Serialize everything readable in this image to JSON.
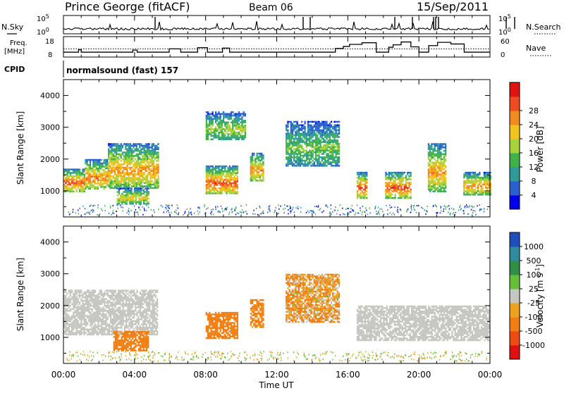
{
  "header": {
    "station": "Prince George (fitACF)",
    "beam": "Beam 06",
    "date": "15/Sep/2011"
  },
  "nsky_panel": {
    "left_label": "N.Sky",
    "right_label": "N.Search",
    "top_tick": "10^5",
    "bottom_tick": "10^0"
  },
  "freq_panel": {
    "left_label_line1": "Freq.",
    "left_label_line2": "[MHz]",
    "left_top_tick": "18",
    "left_bottom_tick": "8",
    "right_label": "Nave",
    "right_top_tick": "60",
    "right_bottom_tick": "0",
    "dotted_level": 12,
    "frequency_steps": [
      {
        "t": 0.0,
        "f": 10.4
      },
      {
        "t": 0.85,
        "f": 11.6
      },
      {
        "t": 1.0,
        "f": 10.4
      },
      {
        "t": 3.9,
        "f": 11.4
      },
      {
        "t": 4.15,
        "f": 10.4
      },
      {
        "t": 5.95,
        "f": 12.0
      },
      {
        "t": 6.6,
        "f": 10.4
      },
      {
        "t": 7.55,
        "f": 12.6
      },
      {
        "t": 8.1,
        "f": 10.4
      },
      {
        "t": 8.95,
        "f": 12.4
      },
      {
        "t": 9.35,
        "f": 10.4
      },
      {
        "t": 15.3,
        "f": 12.2
      },
      {
        "t": 15.75,
        "f": 13.2
      },
      {
        "t": 16.1,
        "f": 14.2
      },
      {
        "t": 16.8,
        "f": 15.0
      },
      {
        "t": 17.6,
        "f": 10.4
      },
      {
        "t": 18.3,
        "f": 12.8
      },
      {
        "t": 18.55,
        "f": 14.0
      },
      {
        "t": 19.0,
        "f": 15.4
      },
      {
        "t": 19.55,
        "f": 13.0
      },
      {
        "t": 20.0,
        "f": 10.4
      },
      {
        "t": 20.55,
        "f": 13.6
      },
      {
        "t": 21.05,
        "f": 15.2
      },
      {
        "t": 21.8,
        "f": 14.4
      },
      {
        "t": 22.55,
        "f": 10.4
      },
      {
        "t": 24.0,
        "f": 10.4
      }
    ]
  },
  "cpid": {
    "label": "CPID",
    "program": "normalsound (fast) 157"
  },
  "chart_data": [
    {
      "type": "heatmap",
      "panel": "power",
      "ylabel": "Slant Range [km]",
      "xlim_hours": [
        0,
        24
      ],
      "ylim": [
        180,
        4500
      ],
      "y_ticks": [
        "1000",
        "2000",
        "3000",
        "4000"
      ],
      "colorbar_label": "Power [dB]",
      "colorbar_ticks": [
        "4",
        "8",
        "12",
        "16",
        "20",
        "24",
        "28"
      ],
      "colorbar_colors": [
        "#0000ee",
        "#2a5fd0",
        "#2f9a9a",
        "#3fb24a",
        "#a8d23c",
        "#f4c21c",
        "#f28a1e",
        "#ee4b1e",
        "#e01212"
      ],
      "regions": [
        {
          "t0": 0.0,
          "t1": 1.2,
          "r0": 1000,
          "r1": 1700,
          "peak": 28
        },
        {
          "t0": 1.2,
          "t1": 2.5,
          "r0": 1050,
          "r1": 2000,
          "peak": 25
        },
        {
          "t0": 2.5,
          "t1": 5.3,
          "r0": 1100,
          "r1": 2500,
          "peak": 24
        },
        {
          "t0": 3.0,
          "t1": 4.8,
          "r0": 600,
          "r1": 1100,
          "peak": 20
        },
        {
          "t0": 8.0,
          "t1": 9.8,
          "r0": 900,
          "r1": 1800,
          "peak": 28
        },
        {
          "t0": 8.0,
          "t1": 10.2,
          "r0": 2600,
          "r1": 3500,
          "peak": 16
        },
        {
          "t0": 10.5,
          "t1": 11.2,
          "r0": 1300,
          "r1": 2200,
          "peak": 24
        },
        {
          "t0": 12.5,
          "t1": 15.5,
          "r0": 1800,
          "r1": 3200,
          "peak": 14
        },
        {
          "t0": 16.5,
          "t1": 17.1,
          "r0": 800,
          "r1": 1600,
          "peak": 28
        },
        {
          "t0": 18.1,
          "t1": 19.5,
          "r0": 800,
          "r1": 1600,
          "peak": 28
        },
        {
          "t0": 20.5,
          "t1": 21.5,
          "r0": 1000,
          "r1": 2500,
          "peak": 24
        },
        {
          "t0": 22.5,
          "t1": 24.0,
          "r0": 900,
          "r1": 1600,
          "peak": 24
        }
      ]
    },
    {
      "type": "heatmap",
      "panel": "velocity",
      "ylabel": "Slant Range [km]",
      "xlabel": "Time UT",
      "x_ticks": [
        "00:00",
        "04:00",
        "08:00",
        "12:00",
        "16:00",
        "20:00",
        "00:00"
      ],
      "xlim_hours": [
        0,
        24
      ],
      "ylim": [
        180,
        4500
      ],
      "y_ticks": [
        "1000",
        "2000",
        "3000",
        "4000"
      ],
      "colorbar_label": "Velocity [m s^-1]",
      "colorbar_ticks": [
        "1000",
        "500",
        "100",
        "25",
        "-25",
        "-100",
        "-500",
        "-1000"
      ],
      "colorbar_colors": [
        "#1f4fbf",
        "#2e8ba0",
        "#2e8f45",
        "#66c036",
        "#c6c6c0",
        "#f0a21c",
        "#f07e12",
        "#ee4a12",
        "#e01010"
      ],
      "regions": [
        {
          "t0": 0.0,
          "t1": 5.3,
          "r0": 1100,
          "r1": 2500,
          "velocity": 0
        },
        {
          "t0": 2.8,
          "t1": 4.8,
          "r0": 600,
          "r1": 1200,
          "velocity": -300
        },
        {
          "t0": 8.0,
          "t1": 9.8,
          "r0": 1000,
          "r1": 1800,
          "velocity": -300
        },
        {
          "t0": 10.5,
          "t1": 11.2,
          "r0": 1300,
          "r1": 2200,
          "velocity": -200
        },
        {
          "t0": 12.5,
          "t1": 15.5,
          "r0": 1500,
          "r1": 3000,
          "velocity": -100
        },
        {
          "t0": 16.5,
          "t1": 24.0,
          "r0": 900,
          "r1": 2000,
          "velocity": 0
        }
      ]
    }
  ]
}
